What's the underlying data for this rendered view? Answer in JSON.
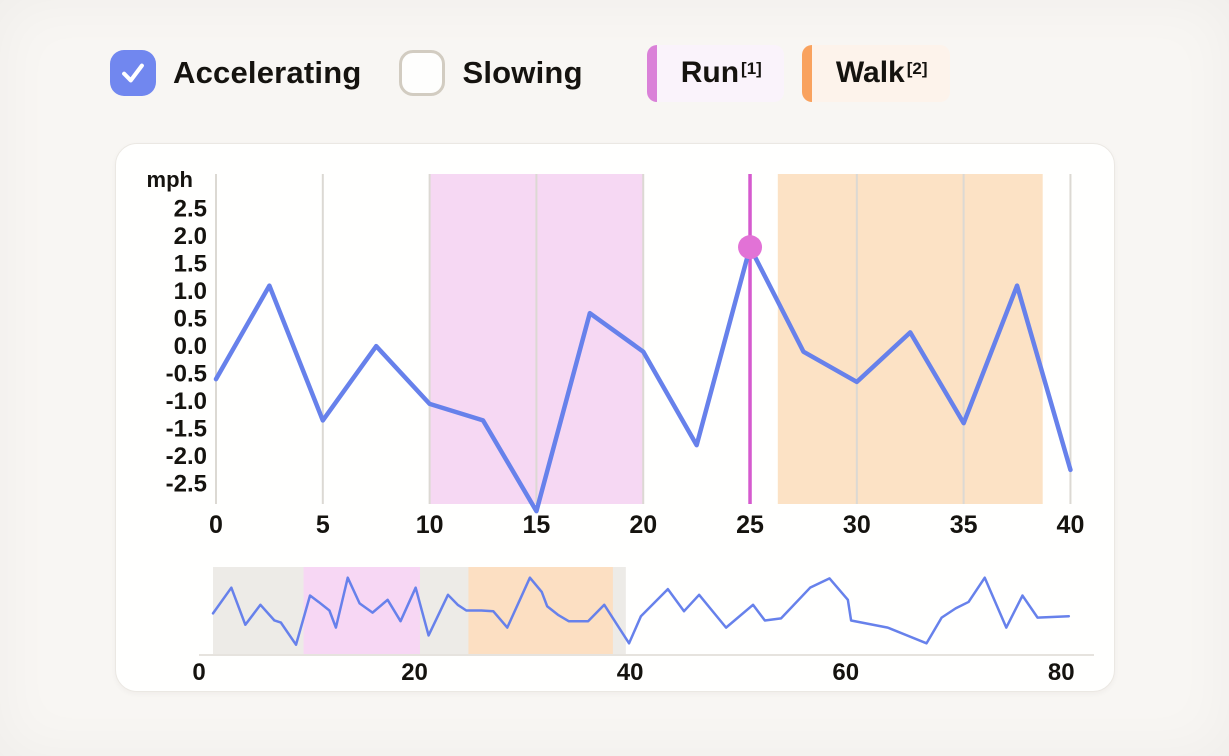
{
  "controls": {
    "accelerating": {
      "label": "Accelerating",
      "checked": true
    },
    "slowing": {
      "label": "Slowing",
      "checked": false
    }
  },
  "legend": [
    {
      "label": "Run",
      "sup": "[1]",
      "bar_color": "#da81d8",
      "bg_color": "#faf3fb"
    },
    {
      "label": "Walk",
      "sup": "[2]",
      "bar_color": "#f9a25e",
      "bg_color": "#fdf3eb"
    }
  ],
  "colors": {
    "accent_blue": "#7187ef",
    "line_blue": "#6781eb",
    "selection_line_magenta": "#d55ace",
    "selection_dot_magenta": "#e272d6",
    "grid": "#dcd9d3",
    "baseline": "#e6e3de",
    "text": "#15130f",
    "checkbox_border": "#d2ccc1",
    "page_bg": "#f8f6f3",
    "card_bg": "#fffffe"
  },
  "chart_data": [
    {
      "type": "line",
      "name": "speed-detail",
      "title": "",
      "xlabel": "",
      "ylabel": "mph",
      "x": [
        0,
        2.5,
        5,
        7.5,
        10,
        12.5,
        15,
        17.5,
        20,
        22.5,
        25,
        27.5,
        30,
        32.5,
        35,
        37.5,
        40
      ],
      "values": [
        -0.6,
        1.1,
        -1.35,
        0.0,
        -1.05,
        -1.35,
        -3.0,
        0.6,
        -0.1,
        -1.8,
        1.8,
        -0.1,
        -0.65,
        0.25,
        -1.4,
        1.1,
        -2.25
      ],
      "x_ticks": [
        0,
        5,
        10,
        15,
        20,
        25,
        30,
        35,
        40
      ],
      "y_ticks": [
        "2.5",
        "2.0",
        "1.5",
        "1.0",
        "0.5",
        "0.0",
        "-0.5",
        "-1.0",
        "-1.5",
        "-2.0",
        "-2.5"
      ],
      "xlim": [
        0,
        40.4
      ],
      "ylim": [
        -2.87,
        3.13
      ],
      "grid": "vertical-only",
      "legend_position": "top-outside",
      "regions": [
        {
          "label": "Run",
          "from": 10,
          "to": 20,
          "color": "#f6d8f3"
        },
        {
          "label": "Walk",
          "from": 26.3,
          "to": 38.7,
          "color": "#fce2c5"
        }
      ],
      "selected_point": {
        "x": 25,
        "y": 1.8
      }
    },
    {
      "type": "line",
      "name": "overview-brush",
      "x_ticks": [
        0,
        20,
        40,
        60,
        80
      ],
      "xlim": [
        0,
        83.5
      ],
      "ylim": [
        -3.05,
        3.05
      ],
      "grid": "off",
      "selection": {
        "from": 1.3,
        "to": 39.6,
        "color": "#edebe7"
      },
      "regions": [
        {
          "label": "Run",
          "from": 9.7,
          "to": 20.5,
          "color": "#f7d7f4"
        },
        {
          "label": "Walk",
          "from": 25,
          "to": 38.4,
          "color": "#fcdfc2"
        }
      ],
      "points": [
        [
          1.3,
          -0.2
        ],
        [
          3.0,
          1.6
        ],
        [
          4.3,
          -1.0
        ],
        [
          5.7,
          0.4
        ],
        [
          7.0,
          -0.7
        ],
        [
          7.6,
          -0.85
        ],
        [
          9.0,
          -2.4
        ],
        [
          10.3,
          1.05
        ],
        [
          11.1,
          0.6
        ],
        [
          12.1,
          0.0
        ],
        [
          12.7,
          -1.2
        ],
        [
          13.8,
          2.3
        ],
        [
          14.9,
          0.5
        ],
        [
          16.1,
          -0.15
        ],
        [
          17.5,
          0.75
        ],
        [
          18.7,
          -0.75
        ],
        [
          20.1,
          1.6
        ],
        [
          21.3,
          -1.75
        ],
        [
          23.1,
          1.1
        ],
        [
          24.0,
          0.4
        ],
        [
          24.8,
          0.0
        ],
        [
          26.2,
          0.0
        ],
        [
          27.3,
          -0.05
        ],
        [
          28.6,
          -1.2
        ],
        [
          30.7,
          2.3
        ],
        [
          31.8,
          1.3
        ],
        [
          32.3,
          0.3
        ],
        [
          33.3,
          -0.3
        ],
        [
          34.3,
          -0.75
        ],
        [
          36.1,
          -0.75
        ],
        [
          37.6,
          0.4
        ],
        [
          39.9,
          -2.3
        ],
        [
          41.0,
          -0.4
        ],
        [
          43.5,
          1.5
        ],
        [
          45.0,
          -0.05
        ],
        [
          46.4,
          1.1
        ],
        [
          48.9,
          -1.2
        ],
        [
          51.4,
          0.4
        ],
        [
          52.5,
          -0.7
        ],
        [
          54.0,
          -0.55
        ],
        [
          56.7,
          1.6
        ],
        [
          58.5,
          2.25
        ],
        [
          60.2,
          0.75
        ],
        [
          60.5,
          -0.7
        ],
        [
          63.9,
          -1.2
        ],
        [
          67.5,
          -2.3
        ],
        [
          68.9,
          -0.5
        ],
        [
          70.2,
          0.15
        ],
        [
          71.4,
          0.6
        ],
        [
          72.9,
          2.3
        ],
        [
          74.9,
          -1.2
        ],
        [
          76.4,
          1.05
        ],
        [
          77.8,
          -0.5
        ],
        [
          80.7,
          -0.4
        ]
      ]
    }
  ]
}
